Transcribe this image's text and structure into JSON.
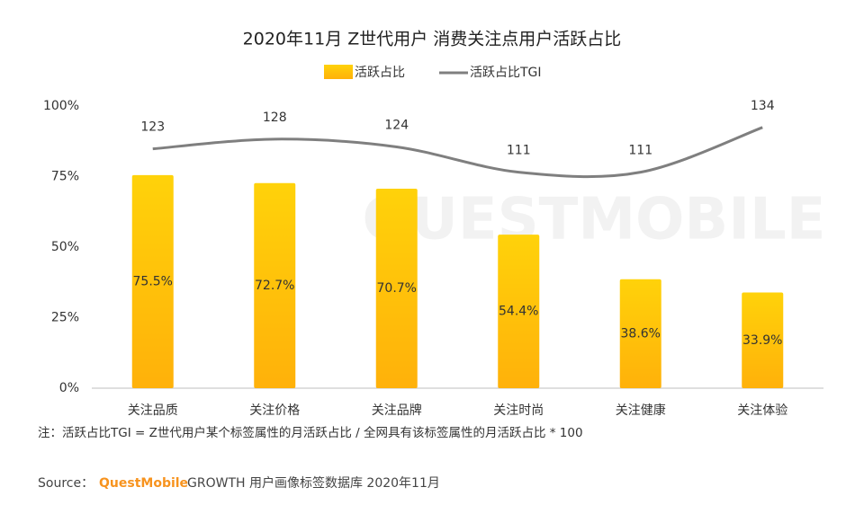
{
  "chart_data": {
    "type": "bar_line",
    "title": "2020年11月 Z世代用户 消费关注点用户活跃占比",
    "watermark": "QUESTMOBILE",
    "categories": [
      "关注品质",
      "关注价格",
      "关注品牌",
      "关注时尚",
      "关注健康",
      "关注体验"
    ],
    "series": [
      {
        "name": "活跃占比",
        "type": "bar",
        "color": "#FFC000",
        "values": [
          75.5,
          72.7,
          70.7,
          54.4,
          38.6,
          33.9
        ],
        "value_labels": [
          "75.5%",
          "72.7%",
          "70.7%",
          "54.4%",
          "38.6%",
          "33.9%"
        ]
      },
      {
        "name": "活跃占比TGI",
        "type": "line",
        "axis": "y2",
        "color": "#7f7f7f",
        "values": [
          123,
          128,
          124,
          111,
          111,
          134
        ]
      }
    ],
    "ylim": [
      0,
      100
    ],
    "yticks": [
      {
        "value": 0,
        "label": "0%"
      },
      {
        "value": 25,
        "label": "25%"
      },
      {
        "value": 50,
        "label": "50%"
      },
      {
        "value": 75,
        "label": "75%"
      },
      {
        "value": 100,
        "label": "100%"
      }
    ],
    "y2lim": [
      0,
      145
    ],
    "grid": false,
    "note": "注：活跃占比TGI = Z世代用户某个标签属性的月活跃占比 / 全网具有该标签属性的月活跃占比 * 100",
    "source": {
      "prefix": "Source：",
      "brand": "QuestMobile",
      "text": "GROWTH 用户画像标签数据库 2020年11月"
    }
  }
}
